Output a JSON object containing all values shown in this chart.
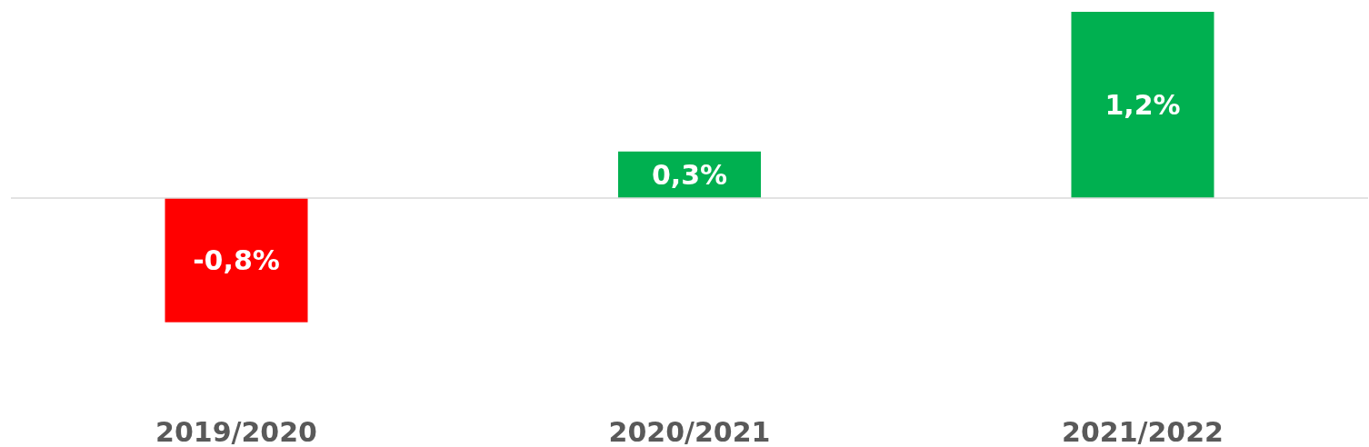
{
  "chart_data": {
    "type": "bar",
    "categories": [
      "2019/2020",
      "2020/2021",
      "2021/2022"
    ],
    "values": [
      -0.8,
      0.3,
      1.2
    ],
    "colors": [
      "#ff0000",
      "#00b050",
      "#00b050"
    ],
    "value_labels": [
      "-0,8%",
      "0,3%",
      "1,2%"
    ]
  }
}
